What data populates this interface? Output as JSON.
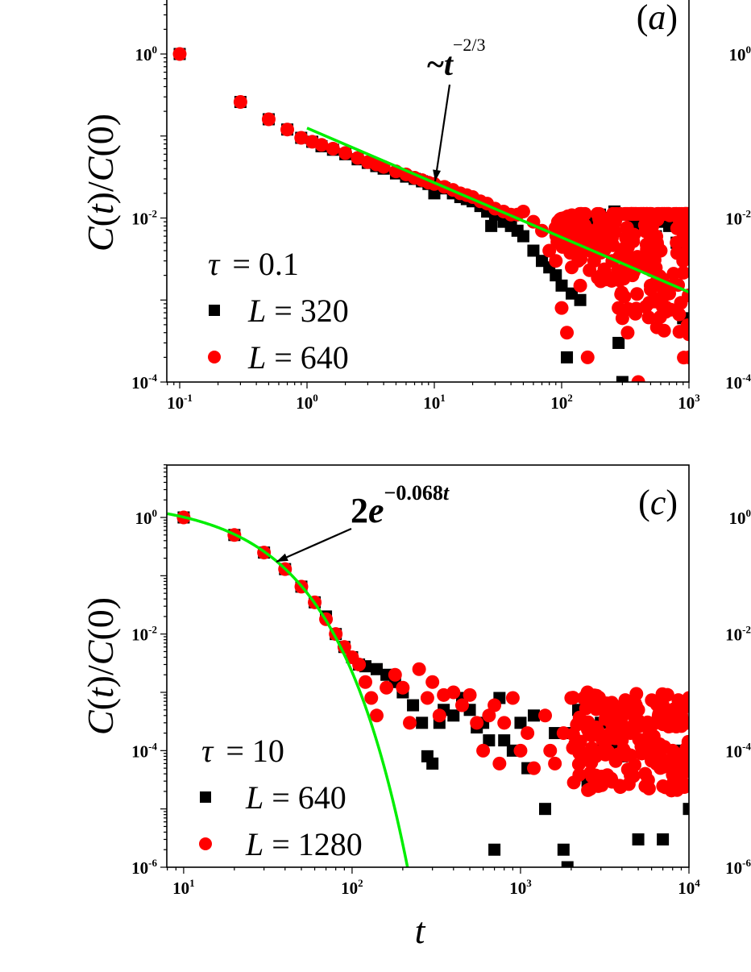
{
  "figure": {
    "panels_visible": [
      "a",
      "c"
    ],
    "right_panels_partial_tick_labels": {
      "top": [
        "10^0",
        "10^-2",
        "10^-4"
      ],
      "bottom": [
        "10^0",
        "10^-2",
        "10^-4",
        "10^-6"
      ]
    }
  },
  "colors": {
    "series_small_L": "#000000",
    "series_large_L": "#ff0000",
    "fit_line": "#00ee00",
    "axes": "#000000"
  },
  "chart_data": [
    {
      "panel": "a",
      "type": "scatter",
      "title": "",
      "panel_label": "(a)",
      "xlabel": "",
      "ylabel": "C(t)/C(0)",
      "xscale": "log",
      "yscale": "log",
      "xlim": [
        0.08,
        1000
      ],
      "ylim": [
        0.0001,
        4.5
      ],
      "xticks": [
        0.1,
        1,
        10,
        100,
        1000
      ],
      "xtick_labels": [
        "10^-1",
        "10^0",
        "10^1",
        "10^2",
        "10^3"
      ],
      "yticks": [
        1,
        0.01,
        0.0001
      ],
      "ytick_labels": [
        "10^0",
        "10^-2",
        "10^-4"
      ],
      "legend_title": "τ = 0.1",
      "legend": [
        "L = 320",
        "L = 640"
      ],
      "annotation": {
        "text": "~t^(-2/3)",
        "arrow_to": [
          10,
          0.028
        ]
      },
      "series": [
        {
          "name": "L = 320",
          "marker": "square",
          "color": "#000000",
          "x": [
            0.1,
            0.3,
            0.5,
            0.7,
            0.9,
            1.1,
            1.3,
            1.6,
            2,
            2.5,
            3,
            3.5,
            4,
            5,
            6,
            7,
            8,
            9,
            10,
            11,
            12,
            14,
            16,
            18,
            20,
            23,
            26,
            28,
            30,
            35,
            40,
            45,
            50,
            60,
            70,
            80,
            90,
            100,
            110,
            120,
            140,
            160,
            180,
            200,
            230,
            260,
            280,
            300,
            330,
            360,
            400,
            450,
            500,
            550,
            600,
            700,
            800,
            900,
            1000
          ],
          "y": [
            1.0,
            0.26,
            0.16,
            0.12,
            0.095,
            0.085,
            0.075,
            0.068,
            0.06,
            0.052,
            0.047,
            0.043,
            0.04,
            0.035,
            0.032,
            0.03,
            0.028,
            0.026,
            0.02,
            0.024,
            0.023,
            0.02,
            0.018,
            0.017,
            0.016,
            0.014,
            0.012,
            0.008,
            0.011,
            0.009,
            0.008,
            0.007,
            0.006,
            0.004,
            0.003,
            0.0025,
            0.002,
            0.0015,
            0.0002,
            0.0012,
            0.001,
            0.009,
            0.01,
            0.011,
            0.01,
            0.012,
            0.0003,
            0.0001,
            0.011,
            0.009,
            0.008,
            0.01,
            0.007,
            0.006,
            0.009,
            0.008,
            0.005,
            0.0006,
            0.009
          ]
        },
        {
          "name": "L = 640",
          "marker": "circle",
          "color": "#ff0000",
          "x": [
            0.1,
            0.3,
            0.5,
            0.7,
            0.9,
            1.1,
            1.3,
            1.6,
            2,
            2.5,
            3,
            3.5,
            4,
            5,
            6,
            7,
            8,
            9,
            10,
            12,
            14,
            16,
            18,
            20,
            23,
            26,
            30,
            35,
            40,
            45,
            50,
            60,
            70,
            80,
            90,
            100,
            110,
            120,
            140,
            160,
            180,
            200,
            220,
            250,
            280,
            300,
            330,
            360,
            400,
            450,
            500,
            550,
            600,
            700,
            800,
            900,
            1000
          ],
          "y": [
            1.0,
            0.26,
            0.16,
            0.12,
            0.095,
            0.085,
            0.078,
            0.07,
            0.062,
            0.054,
            0.048,
            0.045,
            0.042,
            0.037,
            0.034,
            0.031,
            0.029,
            0.027,
            0.026,
            0.024,
            0.022,
            0.02,
            0.019,
            0.018,
            0.016,
            0.015,
            0.013,
            0.012,
            0.011,
            0.011,
            0.012,
            0.009,
            0.007,
            0.004,
            0.003,
            0.0008,
            0.0004,
            0.0025,
            0.0015,
            0.0002,
            0.003,
            0.005,
            0.006,
            0.003,
            0.0008,
            0.0006,
            0.0004,
            0.002,
            0.0001,
            0.003,
            0.0015,
            0.006,
            0.004,
            0.0012,
            0.005,
            0.003,
            0.0002
          ]
        },
        {
          "name": "fit ~t^(-2/3)",
          "marker": "line",
          "color": "#00ee00",
          "x": [
            1,
            1000
          ],
          "y": [
            0.125,
            0.00125
          ]
        }
      ]
    },
    {
      "panel": "c",
      "type": "scatter",
      "title": "",
      "panel_label": "(c)",
      "xlabel": "t",
      "ylabel": "C(t)/C(0)",
      "xscale": "log",
      "yscale": "log",
      "xlim": [
        8,
        10000
      ],
      "ylim": [
        1e-06,
        8
      ],
      "xticks": [
        10,
        100,
        1000,
        10000
      ],
      "xtick_labels": [
        "10^1",
        "10^2",
        "10^3",
        "10^4"
      ],
      "yticks": [
        1,
        0.01,
        0.0001,
        1e-06
      ],
      "ytick_labels": [
        "10^0",
        "10^-2",
        "10^-4",
        "10^-6"
      ],
      "legend_title": "τ = 10",
      "legend": [
        "L = 640",
        "L = 1280"
      ],
      "annotation": {
        "text": "2e^(-0.068t)",
        "arrow_to": [
          36,
          0.17
        ]
      },
      "series": [
        {
          "name": "L = 640",
          "marker": "square",
          "color": "#000000",
          "x": [
            10,
            20,
            30,
            40,
            50,
            60,
            70,
            80,
            90,
            100,
            110,
            120,
            140,
            160,
            180,
            200,
            230,
            260,
            280,
            300,
            330,
            350,
            400,
            450,
            500,
            550,
            600,
            650,
            700,
            750,
            800,
            900,
            1000,
            1100,
            1200,
            1400,
            1600,
            1800,
            1900,
            2000,
            2200,
            2500,
            2700,
            3000,
            3500,
            4000,
            4500,
            5000,
            5500,
            6000,
            7000,
            8000,
            9000,
            10000
          ],
          "y": [
            1.0,
            0.5,
            0.25,
            0.13,
            0.065,
            0.035,
            0.02,
            0.01,
            0.006,
            0.004,
            0.003,
            0.0028,
            0.0025,
            0.002,
            0.0015,
            0.001,
            0.0006,
            0.0003,
            8e-05,
            6e-05,
            0.0003,
            0.0005,
            0.0004,
            0.0008,
            0.0005,
            0.00025,
            0.0003,
            0.00015,
            2e-06,
            0.0008,
            0.00015,
            0.0001,
            0.0003,
            5e-05,
            0.0004,
            1e-05,
            0.0002,
            2e-06,
            1e-06,
            0.0002,
            0.0005,
            3e-05,
            0.0001,
            0.0003,
            0.0001,
            8e-05,
            0.0002,
            3e-06,
            0.00015,
            0.0001,
            3e-06,
            5e-05,
            0.0001,
            1e-05
          ]
        },
        {
          "name": "L = 1280",
          "marker": "circle",
          "color": "#ff0000",
          "x": [
            10,
            20,
            30,
            40,
            50,
            60,
            70,
            80,
            90,
            100,
            110,
            120,
            130,
            140,
            160,
            180,
            200,
            220,
            250,
            280,
            300,
            330,
            350,
            400,
            450,
            500,
            550,
            600,
            650,
            700,
            750,
            800,
            900,
            1000,
            1100,
            1200,
            1400,
            1500,
            1600,
            1800,
            2000,
            2200,
            2500,
            2800,
            3000,
            3500,
            4000,
            4500,
            5000,
            5500,
            6000,
            7000,
            8000,
            9000,
            10000
          ],
          "y": [
            1.0,
            0.5,
            0.25,
            0.13,
            0.065,
            0.035,
            0.018,
            0.01,
            0.006,
            0.004,
            0.003,
            0.0015,
            0.0008,
            0.0004,
            0.0012,
            0.002,
            0.0012,
            0.0003,
            0.0025,
            0.0008,
            0.0015,
            0.0004,
            0.0009,
            0.001,
            0.0006,
            0.0009,
            0.0003,
            0.0001,
            0.0004,
            0.0006,
            6e-05,
            0.0003,
            0.0008,
            0.0001,
            0.0002,
            5e-05,
            0.0004,
            0.0001,
            6e-05,
            0.0002,
            0.0008,
            0.0003,
            0.001,
            8e-05,
            0.0006,
            0.0003,
            0.00015,
            0.0002,
            0.0005,
            4e-05,
            0.0001,
            0.0006,
            0.0001,
            3e-05,
            0.0008
          ]
        },
        {
          "name": "fit 2e^(-0.068t)",
          "marker": "curve",
          "color": "#00ee00",
          "function": "2*exp(-0.068*t)",
          "t_range": [
            8,
            215
          ]
        }
      ]
    }
  ]
}
